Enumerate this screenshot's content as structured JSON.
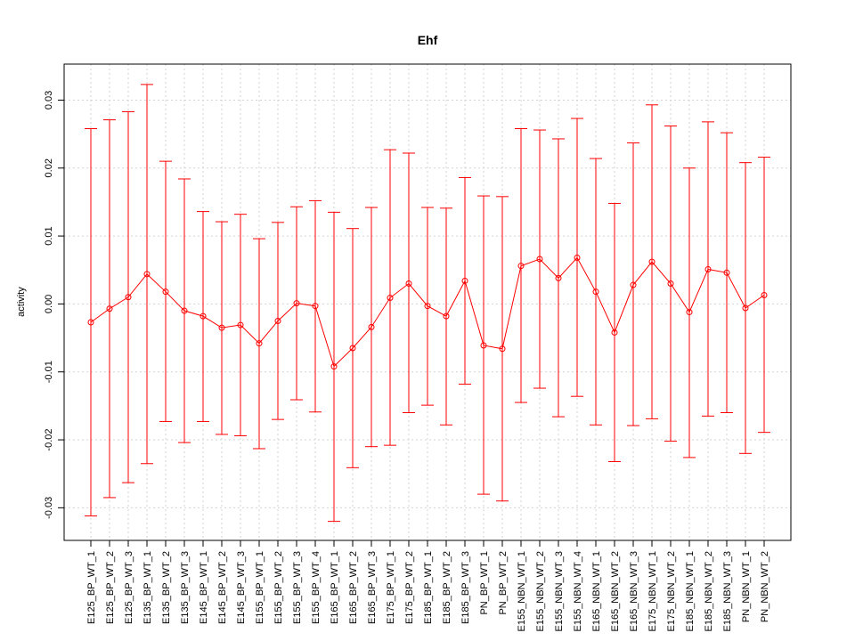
{
  "chart_data": {
    "type": "line",
    "title": "Ehf",
    "xlabel": "",
    "ylabel": "activity",
    "ylim": [
      -0.0348,
      0.0353
    ],
    "yticks": [
      -0.03,
      -0.02,
      -0.01,
      0.0,
      0.01,
      0.02,
      0.03
    ],
    "ytick_labels": [
      "-0.03",
      "-0.02",
      "-0.01",
      "0.00",
      "0.01",
      "0.02",
      "0.03"
    ],
    "grid": true,
    "series_color": "#ff0000",
    "grid_color": "#d3d3d3",
    "categories": [
      "E125_BP_WT_1",
      "E125_BP_WT_2",
      "E125_BP_WT_3",
      "E135_BP_WT_1",
      "E135_BP_WT_2",
      "E135_BP_WT_3",
      "E145_BP_WT_1",
      "E145_BP_WT_2",
      "E145_BP_WT_3",
      "E155_BP_WT_1",
      "E155_BP_WT_2",
      "E155_BP_WT_3",
      "E155_BP_WT_4",
      "E165_BP_WT_1",
      "E165_BP_WT_2",
      "E165_BP_WT_3",
      "E175_BP_WT_1",
      "E175_BP_WT_2",
      "E185_BP_WT_1",
      "E185_BP_WT_2",
      "E185_BP_WT_3",
      "PN_BP_WT_1",
      "PN_BP_WT_2",
      "E155_NBN_WT_1",
      "E155_NBN_WT_2",
      "E155_NBN_WT_3",
      "E155_NBN_WT_4",
      "E165_NBN_WT_1",
      "E165_NBN_WT_2",
      "E165_NBN_WT_3",
      "E175_NBN_WT_1",
      "E175_NBN_WT_2",
      "E185_NBN_WT_1",
      "E185_NBN_WT_2",
      "E185_NBN_WT_3",
      "PN_NBN_WT_1",
      "PN_NBN_WT_2"
    ],
    "values": [
      -0.0027,
      -0.0007,
      0.001,
      0.0044,
      0.0018,
      -0.001,
      -0.0018,
      -0.0035,
      -0.0031,
      -0.0058,
      -0.0025,
      0.0001,
      -0.0003,
      -0.0092,
      -0.0065,
      -0.0034,
      0.0009,
      0.003,
      -0.0003,
      -0.0018,
      0.0034,
      -0.0061,
      -0.0066,
      0.0056,
      0.0066,
      0.0038,
      0.0068,
      0.0018,
      -0.0042,
      0.0028,
      0.0062,
      0.003,
      -0.0012,
      0.0051,
      0.0046,
      -0.0006,
      0.0013
    ],
    "upper": [
      0.0258,
      0.0271,
      0.0283,
      0.0323,
      0.021,
      0.0184,
      0.0136,
      0.0121,
      0.0132,
      0.0096,
      0.012,
      0.0143,
      0.0152,
      0.0135,
      0.0111,
      0.0142,
      0.0227,
      0.0222,
      0.0142,
      0.0141,
      0.0186,
      0.0159,
      0.0158,
      0.0258,
      0.0256,
      0.0243,
      0.0273,
      0.0214,
      0.0148,
      0.0237,
      0.0293,
      0.0262,
      0.02,
      0.0268,
      0.0252,
      0.0208,
      0.0216
    ],
    "lower": [
      -0.0312,
      -0.0285,
      -0.0263,
      -0.0235,
      -0.0173,
      -0.0204,
      -0.0173,
      -0.0192,
      -0.0194,
      -0.0213,
      -0.017,
      -0.0141,
      -0.0159,
      -0.032,
      -0.0241,
      -0.021,
      -0.0208,
      -0.016,
      -0.0149,
      -0.0178,
      -0.0118,
      -0.028,
      -0.029,
      -0.0145,
      -0.0124,
      -0.0166,
      -0.0136,
      -0.0178,
      -0.0232,
      -0.0179,
      -0.0169,
      -0.0202,
      -0.0226,
      -0.0165,
      -0.016,
      -0.022,
      -0.0189
    ]
  }
}
